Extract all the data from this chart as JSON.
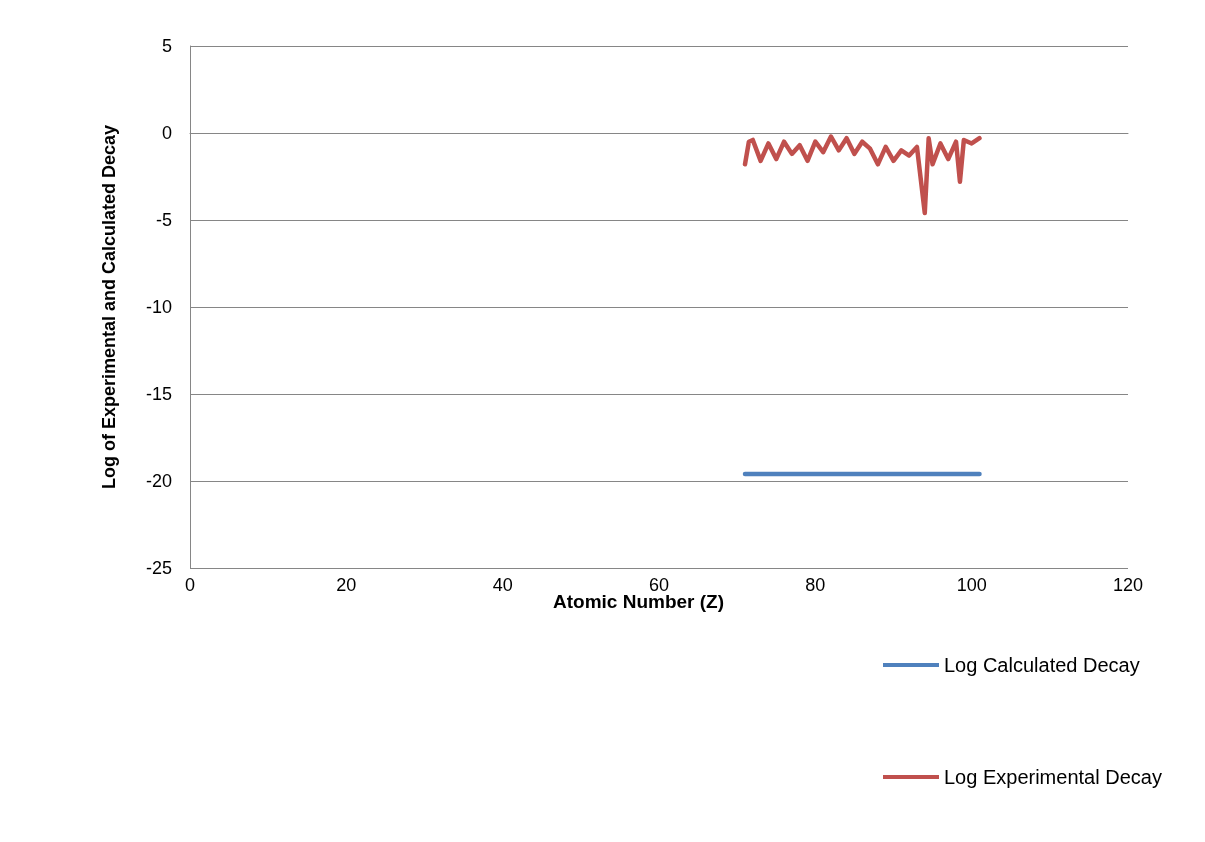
{
  "chart_data": {
    "type": "line",
    "xlabel": "Atomic Number (Z)",
    "ylabel": "Log of Experimental and Calculated Decay",
    "xlim": [
      0,
      120
    ],
    "xticks": [
      0,
      20,
      40,
      60,
      80,
      100,
      120
    ],
    "ylim": [
      -25,
      5
    ],
    "yticks": [
      -25,
      -20,
      -15,
      -10,
      -5,
      0,
      5
    ],
    "grid": "y",
    "legend": "right",
    "marker": "none",
    "line_style": "solid",
    "series": [
      {
        "name": "Log Calculated Decay",
        "color": "#4f81bd",
        "x": [
          71,
          76,
          81,
          86,
          91,
          96,
          101
        ],
        "values": [
          -19.6,
          -19.6,
          -19.6,
          -19.6,
          -19.6,
          -19.6,
          -19.6
        ]
      },
      {
        "name": "Log Experimental Decay",
        "color": "#c0504d",
        "x": [
          71,
          71.5,
          72,
          73,
          74,
          75,
          76,
          77,
          78,
          79,
          80,
          81,
          82,
          83,
          84,
          85,
          86,
          87,
          88,
          89,
          90,
          91,
          92,
          93,
          94,
          94.5,
          95,
          96,
          97,
          98,
          98.5,
          99,
          100,
          101
        ],
        "values": [
          -1.8,
          -0.5,
          -0.4,
          -1.6,
          -0.6,
          -1.5,
          -0.5,
          -1.2,
          -0.7,
          -1.6,
          -0.5,
          -1.1,
          -0.2,
          -1.0,
          -0.3,
          -1.2,
          -0.5,
          -0.9,
          -1.8,
          -0.8,
          -1.6,
          -1.0,
          -1.3,
          -0.8,
          -4.6,
          -0.3,
          -1.8,
          -0.6,
          -1.5,
          -0.5,
          -2.8,
          -0.4,
          -0.6,
          -0.3
        ]
      }
    ]
  }
}
